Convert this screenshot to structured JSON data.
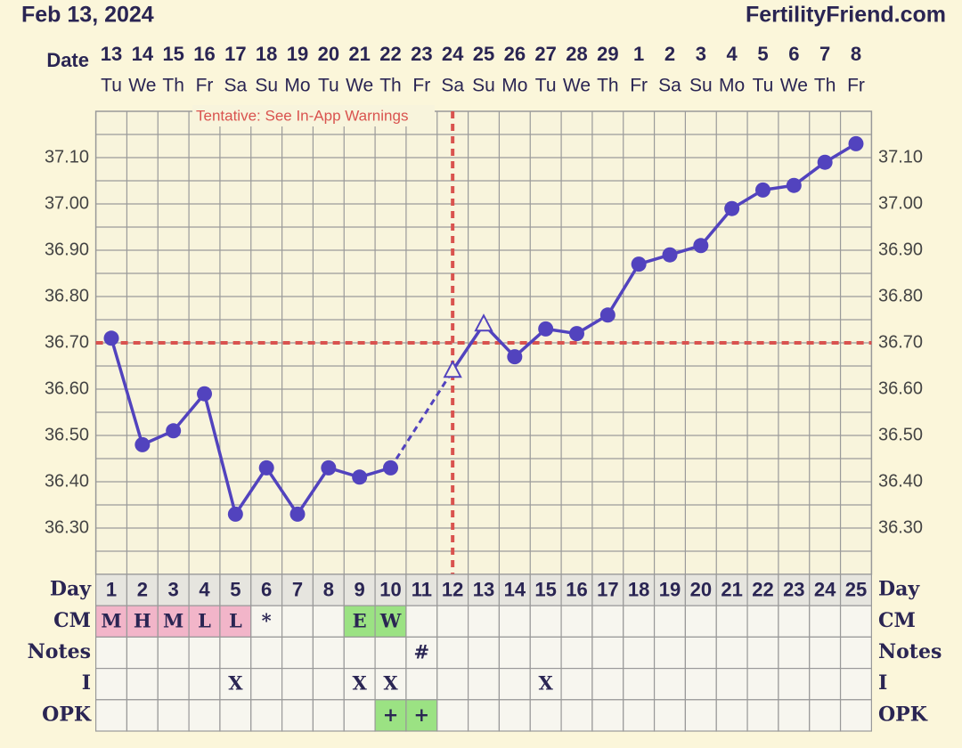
{
  "chart_data": {
    "type": "line",
    "title": "Feb 13, 2024",
    "site": "FertilityFriend.com",
    "date_label": "Date",
    "annotation": "Tentative: See In-App Warnings",
    "categories": [
      "13",
      "14",
      "15",
      "16",
      "17",
      "18",
      "19",
      "20",
      "21",
      "22",
      "23",
      "24",
      "25",
      "26",
      "27",
      "28",
      "29",
      "1",
      "2",
      "3",
      "4",
      "5",
      "6",
      "7",
      "8"
    ],
    "weekdays": [
      "Tu",
      "We",
      "Th",
      "Fr",
      "Sa",
      "Su",
      "Mo",
      "Tu",
      "We",
      "Th",
      "Fr",
      "Sa",
      "Su",
      "Mo",
      "Tu",
      "We",
      "Th",
      "Fr",
      "Sa",
      "Su",
      "Mo",
      "Tu",
      "We",
      "Th",
      "Fr"
    ],
    "series": [
      {
        "color": "#5243be",
        "values": [
          36.71,
          36.48,
          36.51,
          36.59,
          36.33,
          36.43,
          36.33,
          36.43,
          36.41,
          36.43,
          null,
          36.64,
          36.74,
          36.67,
          36.73,
          36.72,
          36.76,
          36.87,
          36.89,
          36.91,
          36.99,
          37.03,
          37.04,
          37.09,
          37.13
        ],
        "markers": [
          "circle",
          "circle",
          "circle",
          "circle",
          "circle",
          "circle",
          "circle",
          "circle",
          "circle",
          "circle",
          null,
          "triangle",
          "triangle",
          "circle",
          "circle",
          "circle",
          "circle",
          "circle",
          "circle",
          "circle",
          "circle",
          "circle",
          "circle",
          "circle",
          "circle"
        ],
        "gap_line": "dashed"
      }
    ],
    "coverline": 36.7,
    "coverline_color": "#d9534f",
    "ovulation_index": 11,
    "ylim": [
      36.2,
      37.2
    ],
    "yticks": [
      {
        "value": 36.3,
        "label": "36.30"
      },
      {
        "value": 36.4,
        "label": "36.40"
      },
      {
        "value": 36.5,
        "label": "36.50"
      },
      {
        "value": 36.6,
        "label": "36.60"
      },
      {
        "value": 36.7,
        "label": "36.70"
      },
      {
        "value": 36.8,
        "label": "36.80"
      },
      {
        "value": 36.9,
        "label": "36.90"
      },
      {
        "value": 37.0,
        "label": "37.00"
      },
      {
        "value": 37.1,
        "label": "37.10"
      }
    ],
    "minor_yticks": [
      36.25,
      36.35,
      36.45,
      36.55,
      36.65,
      36.75,
      36.85,
      36.95,
      37.05,
      37.15
    ],
    "grid": true,
    "day_label": "Day",
    "cycle_days": [
      1,
      2,
      3,
      4,
      5,
      6,
      7,
      8,
      9,
      10,
      11,
      12,
      13,
      14,
      15,
      16,
      17,
      18,
      19,
      20,
      21,
      22,
      23,
      24,
      25
    ],
    "rows": [
      {
        "label": "CM",
        "cells": [
          "M",
          "H",
          "M",
          "L",
          "L",
          "*",
          null,
          null,
          "E",
          "W",
          null,
          null,
          null,
          null,
          null,
          null,
          null,
          null,
          null,
          null,
          null,
          null,
          null,
          null,
          null
        ],
        "cell_colors": [
          "#f2b5c9",
          "#f2b5c9",
          "#f2b5c9",
          "#f2b5c9",
          "#f2b5c9",
          null,
          null,
          null,
          "#9be283",
          "#9be283",
          null,
          null,
          null,
          null,
          null,
          null,
          null,
          null,
          null,
          null,
          null,
          null,
          null,
          null,
          null
        ]
      },
      {
        "label": "Notes",
        "cells": [
          null,
          null,
          null,
          null,
          null,
          null,
          null,
          null,
          null,
          null,
          "#",
          null,
          null,
          null,
          null,
          null,
          null,
          null,
          null,
          null,
          null,
          null,
          null,
          null,
          null
        ]
      },
      {
        "label": "I",
        "cells": [
          null,
          null,
          null,
          null,
          "X",
          null,
          null,
          null,
          "X",
          "X",
          null,
          null,
          null,
          null,
          "X",
          null,
          null,
          null,
          null,
          null,
          null,
          null,
          null,
          null,
          null
        ]
      },
      {
        "label": "OPK",
        "cells": [
          null,
          null,
          null,
          null,
          null,
          null,
          null,
          null,
          null,
          "+",
          "+",
          null,
          null,
          null,
          null,
          null,
          null,
          null,
          null,
          null,
          null,
          null,
          null,
          null,
          null
        ],
        "cell_colors": [
          null,
          null,
          null,
          null,
          null,
          null,
          null,
          null,
          null,
          "#9be283",
          "#9be283",
          null,
          null,
          null,
          null,
          null,
          null,
          null,
          null,
          null,
          null,
          null,
          null,
          null,
          null
        ]
      }
    ]
  }
}
